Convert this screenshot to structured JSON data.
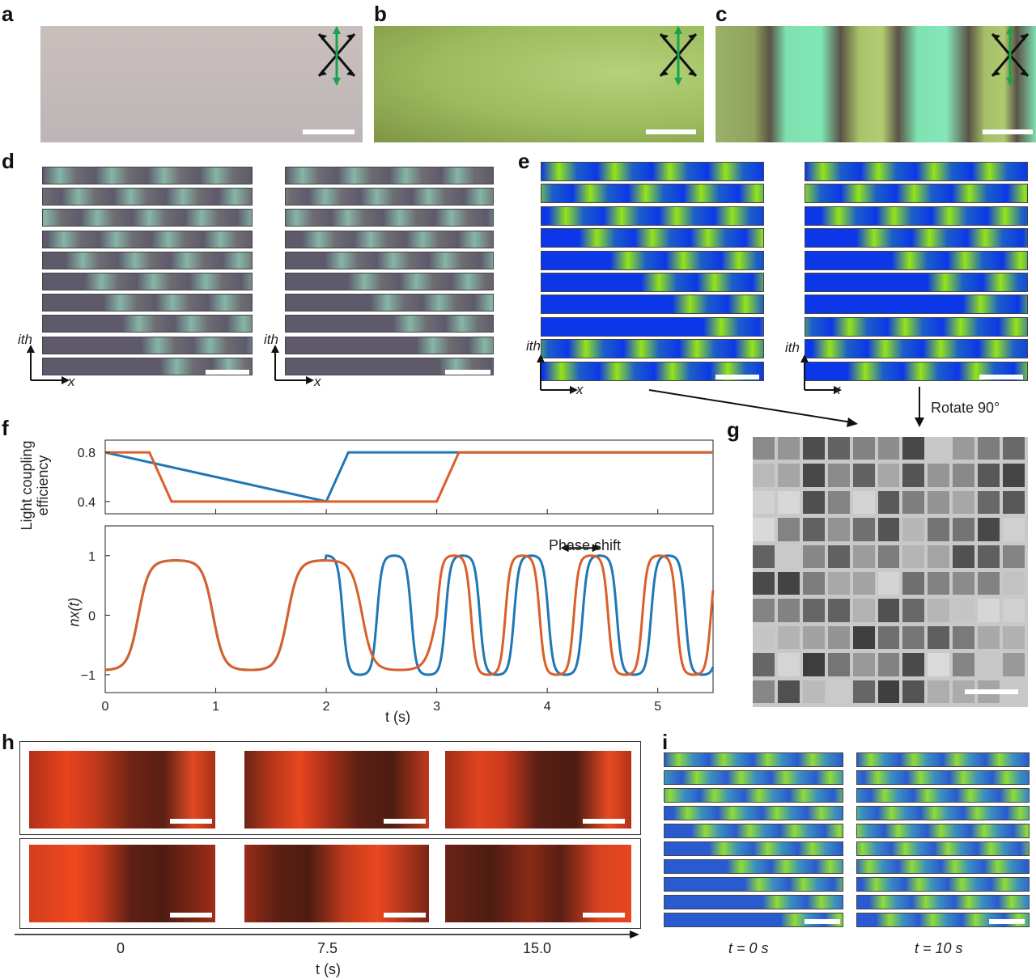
{
  "panel_labels": {
    "a": "a",
    "b": "b",
    "c": "c",
    "d": "d",
    "e": "e",
    "f": "f",
    "g": "g",
    "h": "h",
    "i": "i"
  },
  "axes": {
    "ith": "ith",
    "x": "x"
  },
  "annotations": {
    "rotate": "Rotate 90°",
    "phase_shift": "Phase shift"
  },
  "colors": {
    "blue_series": "#1f77b4",
    "orange_series": "#d95f2b",
    "green_arrow": "#1aa34a"
  },
  "chart_data": [
    {
      "type": "line",
      "ylabel": "Light coupling efficiency",
      "yticks": [
        "0.4",
        "0.8"
      ],
      "ylim": [
        0.3,
        0.9
      ],
      "xlim": [
        0,
        5.5
      ],
      "series": [
        {
          "x": [
            0,
            2,
            2.2,
            5.5
          ],
          "y": [
            0.8,
            0.4,
            0.8,
            0.8
          ]
        },
        {
          "x": [
            0,
            0.4,
            0.6,
            3.0,
            3.2,
            5.5
          ],
          "y": [
            0.8,
            0.8,
            0.4,
            0.4,
            0.8,
            0.8
          ]
        }
      ]
    },
    {
      "type": "line",
      "ylabel": "nx(t)",
      "xlabel": "t (s)",
      "xticks": [
        "0",
        "1",
        "2",
        "3",
        "4",
        "5"
      ],
      "yticks": [
        "−1",
        "0",
        "1"
      ],
      "xlim": [
        0,
        5.5
      ],
      "ylim": [
        -1.3,
        1.5
      ],
      "annotation": "Phase shift"
    }
  ],
  "h_axis": {
    "ticks": [
      "0",
      "7.5",
      "15.0"
    ],
    "label": "t (s)"
  },
  "i_labels": {
    "left": "t = 0 s",
    "right": "t = 10 s"
  }
}
